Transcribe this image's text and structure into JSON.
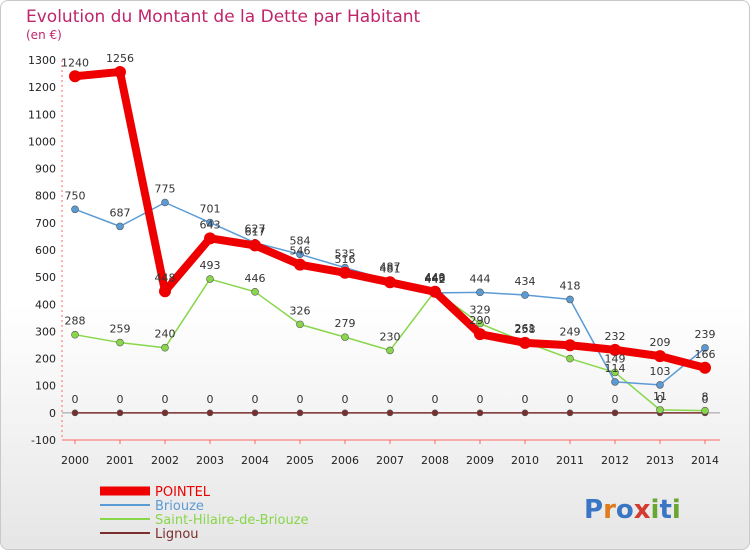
{
  "chart_data": {
    "type": "line",
    "title": "Evolution du Montant de la Dette par Habitant",
    "subtitle": "(en €)",
    "xlabel": "",
    "ylabel": "",
    "categories": [
      "2000",
      "2001",
      "2002",
      "2003",
      "2004",
      "2005",
      "2006",
      "2007",
      "2008",
      "2009",
      "2010",
      "2011",
      "2012",
      "2013",
      "2014"
    ],
    "ylim": [
      -100,
      1300
    ],
    "yticks": [
      -100,
      0,
      100,
      200,
      300,
      400,
      500,
      600,
      700,
      800,
      900,
      1000,
      1100,
      1200,
      1300
    ],
    "grid": false,
    "legend_position": "bottom-left",
    "series": [
      {
        "name": "POINTEL",
        "color": "#ee0000",
        "values": [
          1240,
          1256,
          448,
          643,
          617,
          546,
          516,
          481,
          446,
          290,
          258,
          249,
          232,
          209,
          166
        ]
      },
      {
        "name": "Briouze",
        "color": "#5b9bd5",
        "values": [
          750,
          687,
          775,
          701,
          627,
          584,
          535,
          487,
          442,
          444,
          434,
          418,
          114,
          103,
          239
        ]
      },
      {
        "name": "Saint-Hilaire-de-Briouze",
        "color": "#88d64a",
        "values": [
          288,
          259,
          240,
          493,
          446,
          326,
          279,
          230,
          449,
          329,
          261,
          200,
          149,
          11,
          8
        ]
      },
      {
        "name": "Lignou",
        "color": "#7b2e2e",
        "values": [
          0,
          0,
          0,
          0,
          0,
          0,
          0,
          0,
          0,
          0,
          0,
          0,
          0,
          0,
          0
        ]
      }
    ],
    "data_labels": [
      {
        "series": 0,
        "labels": [
          "1240",
          "1256",
          "448",
          "643",
          "617",
          "546",
          "516",
          "481",
          "446",
          "290",
          "258",
          "249",
          "232",
          "209",
          "166"
        ]
      },
      {
        "series": 1,
        "labels": [
          "750",
          "687",
          "775",
          "701",
          "627",
          "584",
          "535",
          "487",
          "442",
          "444",
          "434",
          "418",
          "114",
          "103",
          "239"
        ]
      },
      {
        "series": 2,
        "labels": [
          "288",
          "259",
          "240",
          "493",
          "446",
          "326",
          "279",
          "230",
          "449",
          "329",
          "261",
          "",
          "149",
          "11",
          "8"
        ]
      },
      {
        "series": 3,
        "labels": [
          "0",
          "0",
          "0",
          "0",
          "0",
          "0",
          "0",
          "0",
          "0",
          "0",
          "0",
          "0",
          "0",
          "0",
          "0"
        ]
      }
    ]
  },
  "watermark": {
    "text": "Proxiti"
  }
}
